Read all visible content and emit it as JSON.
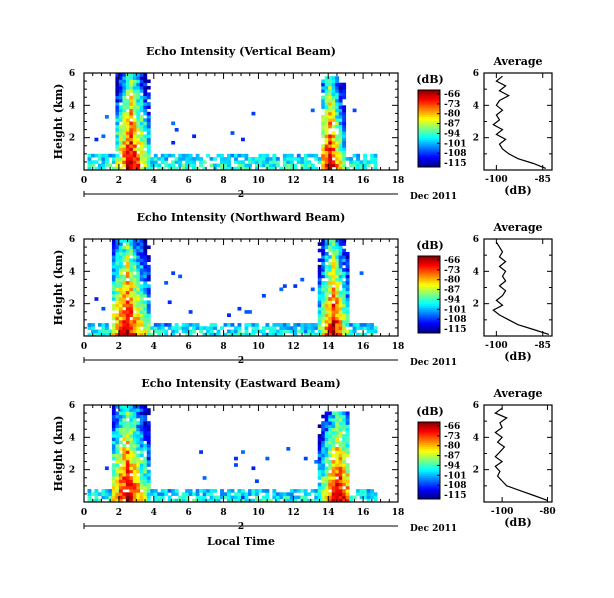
{
  "chart_data": [
    {
      "type": "heatmap",
      "title": "Echo Intensity (Vertical Beam)",
      "ylabel": "Height (km)",
      "xticks": [
        "0",
        "2",
        "4",
        "6",
        "8",
        "10",
        "12",
        "14",
        "16",
        "18"
      ],
      "yticks": [
        "2",
        "4",
        "6"
      ],
      "xlim": [
        0,
        18
      ],
      "ylim": [
        0,
        6
      ],
      "date_label": "Dec 2011",
      "day_label": "2",
      "colorbar": {
        "title": "(dB)",
        "ticks": [
          "-66",
          "-73",
          "-80",
          "-87",
          "-94",
          "-101",
          "-108",
          "-115"
        ]
      },
      "bursts": [
        {
          "x0": 1.8,
          "x1": 3.8,
          "peak_x": 2.7,
          "top_km": 6.0
        },
        {
          "x0": 13.6,
          "x1": 15.0,
          "peak_x": 14.1,
          "top_km": 5.7
        }
      ],
      "background_layer_top_km": 1.0,
      "profile": {
        "title": "Average",
        "xlabel": "(dB)",
        "xticks": [
          "-100",
          "-85"
        ],
        "xlim": [
          -104,
          -82
        ],
        "yticks": [
          "2",
          "4",
          "6"
        ],
        "points": [
          [
            -84,
            0.1
          ],
          [
            -88,
            0.4
          ],
          [
            -93,
            0.7
          ],
          [
            -96,
            1.0
          ],
          [
            -98,
            1.3
          ],
          [
            -99,
            1.6
          ],
          [
            -97,
            1.9
          ],
          [
            -100,
            2.2
          ],
          [
            -98,
            2.5
          ],
          [
            -101,
            2.8
          ],
          [
            -99,
            3.1
          ],
          [
            -100,
            3.4
          ],
          [
            -98,
            3.7
          ],
          [
            -100,
            4.0
          ],
          [
            -99,
            4.3
          ],
          [
            -96,
            4.6
          ],
          [
            -99,
            4.9
          ],
          [
            -97,
            5.2
          ],
          [
            -100,
            5.5
          ],
          [
            -98,
            5.8
          ]
        ]
      }
    },
    {
      "type": "heatmap",
      "title": "Echo Intensity (Northward Beam)",
      "ylabel": "Height (km)",
      "xticks": [
        "0",
        "2",
        "4",
        "6",
        "8",
        "10",
        "12",
        "14",
        "16",
        "18"
      ],
      "yticks": [
        "2",
        "4",
        "6"
      ],
      "xlim": [
        0,
        18
      ],
      "ylim": [
        0,
        6
      ],
      "date_label": "Dec 2011",
      "day_label": "2",
      "colorbar": {
        "title": "(dB)",
        "ticks": [
          "-66",
          "-73",
          "-80",
          "-87",
          "-94",
          "-101",
          "-108",
          "-115"
        ]
      },
      "bursts": [
        {
          "x0": 1.6,
          "x1": 3.8,
          "peak_x": 2.5,
          "top_km": 6.0
        },
        {
          "x0": 13.4,
          "x1": 15.2,
          "peak_x": 14.3,
          "top_km": 6.0
        }
      ],
      "background_layer_top_km": 0.8,
      "profile": {
        "title": "Average",
        "xlabel": "(dB)",
        "xticks": [
          "-100",
          "-85"
        ],
        "xlim": [
          -104,
          -82
        ],
        "yticks": [
          "2",
          "4",
          "6"
        ],
        "points": [
          [
            -83,
            0.1
          ],
          [
            -88,
            0.4
          ],
          [
            -93,
            0.7
          ],
          [
            -96,
            1.0
          ],
          [
            -99,
            1.3
          ],
          [
            -101,
            1.6
          ],
          [
            -98,
            1.9
          ],
          [
            -100,
            2.2
          ],
          [
            -98,
            2.5
          ],
          [
            -97,
            2.8
          ],
          [
            -99,
            3.1
          ],
          [
            -97,
            3.4
          ],
          [
            -98,
            3.7
          ],
          [
            -97,
            4.0
          ],
          [
            -99,
            4.3
          ],
          [
            -97,
            4.6
          ],
          [
            -99,
            4.9
          ],
          [
            -98,
            5.2
          ],
          [
            -99,
            5.5
          ],
          [
            -100,
            5.8
          ]
        ]
      }
    },
    {
      "type": "heatmap",
      "title": "Echo Intensity (Eastward Beam)",
      "ylabel": "Height (km)",
      "xlabel": "Local Time",
      "xticks": [
        "0",
        "2",
        "4",
        "6",
        "8",
        "10",
        "12",
        "14",
        "16",
        "18"
      ],
      "yticks": [
        "2",
        "4",
        "6"
      ],
      "xlim": [
        0,
        18
      ],
      "ylim": [
        0,
        6
      ],
      "date_label": "Dec 2011",
      "day_label": "2",
      "colorbar": {
        "title": "(dB)",
        "ticks": [
          "-66",
          "-73",
          "-80",
          "-87",
          "-94",
          "-101",
          "-108",
          "-115"
        ]
      },
      "bursts": [
        {
          "x0": 1.6,
          "x1": 3.8,
          "peak_x": 2.5,
          "top_km": 6.0
        },
        {
          "x0": 13.4,
          "x1": 15.2,
          "peak_x": 14.6,
          "top_km": 5.6
        }
      ],
      "background_layer_top_km": 0.8,
      "profile": {
        "title": "Average",
        "xlabel": "(dB)",
        "xticks": [
          "-100",
          "-80"
        ],
        "xlim": [
          -108,
          -78
        ],
        "yticks": [
          "2",
          "4",
          "6"
        ],
        "points": [
          [
            -80,
            0.1
          ],
          [
            -86,
            0.4
          ],
          [
            -92,
            0.7
          ],
          [
            -98,
            1.0
          ],
          [
            -100,
            1.3
          ],
          [
            -102,
            1.6
          ],
          [
            -101,
            1.9
          ],
          [
            -103,
            2.2
          ],
          [
            -100,
            2.5
          ],
          [
            -103,
            2.8
          ],
          [
            -101,
            3.1
          ],
          [
            -99,
            3.4
          ],
          [
            -102,
            3.7
          ],
          [
            -100,
            4.0
          ],
          [
            -103,
            4.3
          ],
          [
            -100,
            4.6
          ],
          [
            -101,
            4.9
          ],
          [
            -98,
            5.2
          ],
          [
            -103,
            5.5
          ],
          [
            -100,
            5.8
          ]
        ]
      }
    }
  ]
}
